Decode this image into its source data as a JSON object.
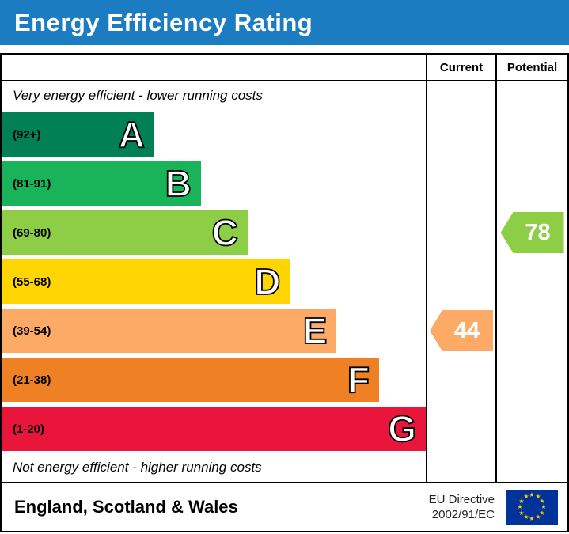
{
  "header": {
    "title": "Energy Efficiency Rating",
    "bg_color": "#1b7cc2",
    "text_color": "#ffffff"
  },
  "table": {
    "current_label": "Current",
    "potential_label": "Potential",
    "top_note": "Very energy efficient - lower running costs",
    "bottom_note": "Not energy efficient - higher running costs"
  },
  "chart_data": {
    "type": "bar",
    "title": "Energy Efficiency Rating",
    "bands": [
      {
        "letter": "A",
        "range": "(92+)",
        "min": 92,
        "max": 100,
        "color": "#008054",
        "width_pct": 36
      },
      {
        "letter": "B",
        "range": "(81-91)",
        "min": 81,
        "max": 91,
        "color": "#19b459",
        "width_pct": 47
      },
      {
        "letter": "C",
        "range": "(69-80)",
        "min": 69,
        "max": 80,
        "color": "#8dce46",
        "width_pct": 58
      },
      {
        "letter": "D",
        "range": "(55-68)",
        "min": 55,
        "max": 68,
        "color": "#ffd500",
        "width_pct": 68
      },
      {
        "letter": "E",
        "range": "(39-54)",
        "min": 39,
        "max": 54,
        "color": "#fcaa65",
        "width_pct": 79
      },
      {
        "letter": "F",
        "range": "(21-38)",
        "min": 21,
        "max": 38,
        "color": "#ef8023",
        "width_pct": 89
      },
      {
        "letter": "G",
        "range": "(1-20)",
        "min": 1,
        "max": 20,
        "color": "#e9153b",
        "width_pct": 100
      }
    ],
    "current": {
      "value": 44,
      "band": "E",
      "color": "#fcaa65"
    },
    "potential": {
      "value": 78,
      "band": "C",
      "color": "#8dce46"
    }
  },
  "footer": {
    "region": "England, Scotland & Wales",
    "directive": [
      "EU Directive",
      "2002/91/EC"
    ]
  }
}
